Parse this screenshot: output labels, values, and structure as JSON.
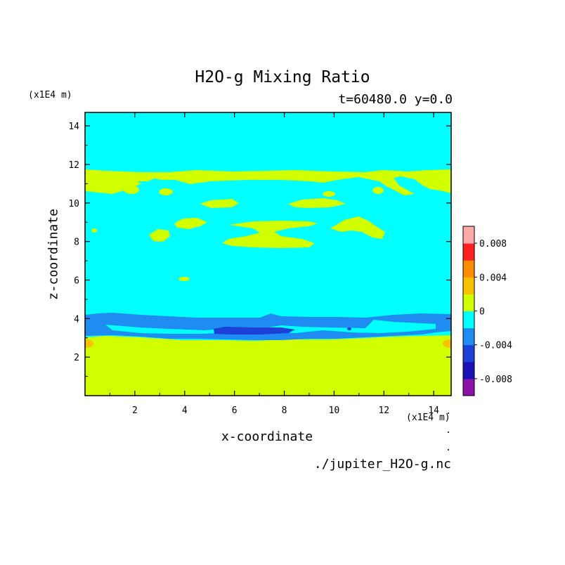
{
  "chart_data": {
    "type": "heatmap",
    "title": "H2O-g Mixing Ratio",
    "subtitle": "t=60480.0 y=0.0",
    "xlabel": "x-coordinate",
    "ylabel": "z-coordinate",
    "x_units": "(x1E4 m)",
    "z_units": "(x1E4 m)",
    "xlim": [
      0,
      14.7
    ],
    "ylim": [
      0,
      14.7
    ],
    "x_ticks": [
      2,
      4,
      6,
      8,
      10,
      12,
      14
    ],
    "y_ticks": [
      2,
      4,
      6,
      8,
      10,
      12,
      14
    ],
    "colorbar": {
      "levels": [
        -0.01,
        -0.008,
        -0.006,
        -0.004,
        -0.002,
        0,
        0.002,
        0.004,
        0.006,
        0.008,
        0.01
      ],
      "colors": [
        "#8a12a8",
        "#1c10b8",
        "#1d40d8",
        "#1e8cf0",
        "#00ffff",
        "#d2ff00",
        "#fbc000",
        "#fd8c00",
        "#ff2020",
        "#fcaaaa"
      ],
      "tick_labels": [
        "0.008",
        "0.004",
        "0",
        "-0.004",
        "-0.008"
      ]
    },
    "regions": [
      {
        "level": "0 to 0.002",
        "description": "lower layer",
        "z_range": [
          0,
          3.0
        ]
      },
      {
        "level": "-0.002 to 0",
        "description": "background",
        "z_range": [
          0,
          14.7
        ]
      },
      {
        "level": "-0.004 to -0.002",
        "description": "band",
        "z_range": [
          3.1,
          4.3
        ]
      },
      {
        "level": "-0.006 to -0.004",
        "description": "core",
        "x_range": [
          5.2,
          8.6
        ],
        "z_range": [
          3.3,
          3.6
        ]
      },
      {
        "level": "0 to 0.002",
        "description": "upper layer",
        "z_range": [
          10.6,
          11.9
        ]
      },
      {
        "level": "0.002 to 0.004",
        "description": "edge spots",
        "x": [
          0,
          14.7
        ],
        "z": 2.8
      }
    ]
  },
  "footer": {
    "source": "./jupiter_H2O-g.nc"
  }
}
